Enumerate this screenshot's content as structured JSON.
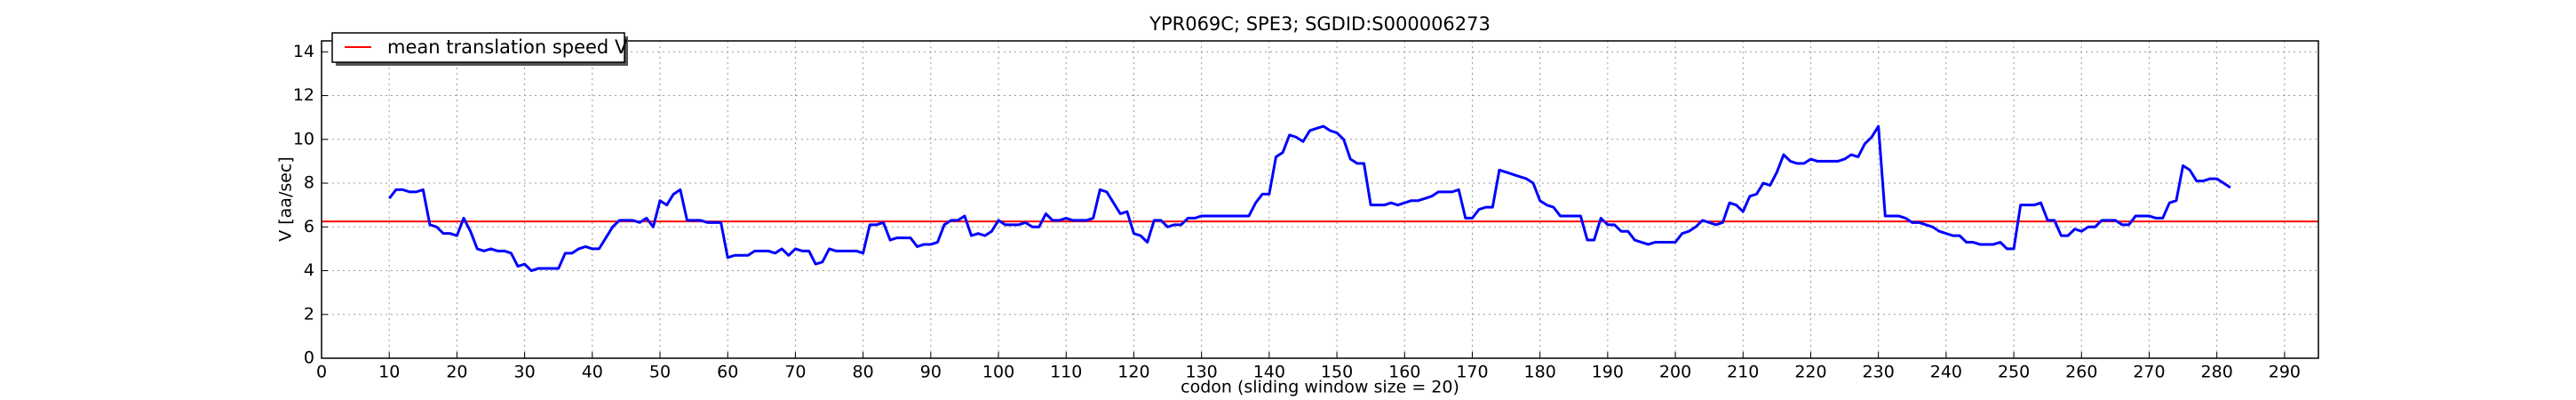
{
  "chart_data": {
    "type": "line",
    "title": "YPR069C; SPE3; SGDID:S000006273",
    "xlabel": "codon  (sliding window size = 20)",
    "ylabel": "V [aa/sec]",
    "xlim": [
      0,
      295
    ],
    "ylim": [
      0,
      14.5
    ],
    "xticks": [
      0,
      10,
      20,
      30,
      40,
      50,
      60,
      70,
      80,
      90,
      100,
      110,
      120,
      130,
      140,
      150,
      160,
      170,
      180,
      190,
      200,
      210,
      220,
      230,
      240,
      250,
      260,
      270,
      280,
      290
    ],
    "yticks": [
      0,
      2,
      4,
      6,
      8,
      10,
      12,
      14
    ],
    "grid": true,
    "legend": "upper left",
    "mean": {
      "name": "mean translation speed V",
      "value": 6.25,
      "color": "#ff0000"
    },
    "x": [
      10,
      11,
      12,
      13,
      14,
      15,
      16,
      17,
      18,
      19,
      20,
      21,
      22,
      23,
      24,
      25,
      26,
      27,
      28,
      29,
      30,
      31,
      32,
      33,
      34,
      35,
      36,
      37,
      38,
      39,
      40,
      41,
      42,
      43,
      44,
      45,
      46,
      47,
      48,
      49,
      50,
      51,
      52,
      53,
      54,
      55,
      56,
      57,
      58,
      59,
      60,
      61,
      62,
      63,
      64,
      65,
      66,
      67,
      68,
      69,
      70,
      71,
      72,
      73,
      74,
      75,
      76,
      77,
      78,
      79,
      80,
      81,
      82,
      83,
      84,
      85,
      86,
      87,
      88,
      89,
      90,
      91,
      92,
      93,
      94,
      95,
      96,
      97,
      98,
      99,
      100,
      101,
      102,
      103,
      104,
      105,
      106,
      107,
      108,
      109,
      110,
      111,
      112,
      113,
      114,
      115,
      116,
      117,
      118,
      119,
      120,
      121,
      122,
      123,
      124,
      125,
      126,
      127,
      128,
      129,
      130,
      131,
      132,
      133,
      134,
      135,
      136,
      137,
      138,
      139,
      140,
      141,
      142,
      143,
      144,
      145,
      146,
      147,
      148,
      149,
      150,
      151,
      152,
      153,
      154,
      155,
      156,
      157,
      158,
      159,
      160,
      161,
      162,
      163,
      164,
      165,
      166,
      167,
      168,
      169,
      170,
      171,
      172,
      173,
      174,
      175,
      176,
      177,
      178,
      179,
      180,
      181,
      182,
      183,
      184,
      185,
      186,
      187,
      188,
      189,
      190,
      191,
      192,
      193,
      194,
      195,
      196,
      197,
      198,
      199,
      200,
      201,
      202,
      203,
      204,
      205,
      206,
      207,
      208,
      209,
      210,
      211,
      212,
      213,
      214,
      215,
      216,
      217,
      218,
      219,
      220,
      221,
      222,
      223,
      224,
      225,
      226,
      227,
      228,
      229,
      230,
      231,
      232,
      233,
      234,
      235,
      236,
      237,
      238,
      239,
      240,
      241,
      242,
      243,
      244,
      245,
      246,
      247,
      248,
      249,
      250,
      251,
      252,
      253,
      254,
      255,
      256,
      257,
      258,
      259,
      260,
      261,
      262,
      263,
      264,
      265,
      266,
      267,
      268,
      269,
      270,
      271,
      272,
      273,
      274,
      275,
      276,
      277,
      278,
      279,
      280,
      281,
      282
    ],
    "series": [
      {
        "color": "#0000ff",
        "values": [
          7.3,
          7.7,
          7.7,
          7.6,
          7.6,
          7.7,
          6.1,
          6.0,
          5.7,
          5.7,
          5.6,
          6.4,
          5.8,
          5.0,
          4.9,
          5.0,
          4.9,
          4.9,
          4.8,
          4.2,
          4.3,
          4.0,
          4.1,
          4.1,
          4.1,
          4.1,
          4.8,
          4.8,
          5.0,
          5.1,
          5.0,
          5.0,
          5.5,
          6.0,
          6.3,
          6.3,
          6.3,
          6.2,
          6.4,
          6.0,
          7.2,
          7.0,
          7.5,
          7.7,
          6.3,
          6.3,
          6.3,
          6.2,
          6.2,
          6.2,
          4.6,
          4.7,
          4.7,
          4.7,
          4.9,
          4.9,
          4.9,
          4.8,
          5.0,
          4.7,
          5.0,
          4.9,
          4.9,
          4.3,
          4.4,
          5.0,
          4.9,
          4.9,
          4.9,
          4.9,
          4.8,
          6.1,
          6.1,
          6.2,
          5.4,
          5.5,
          5.5,
          5.5,
          5.1,
          5.2,
          5.2,
          5.3,
          6.1,
          6.3,
          6.3,
          6.5,
          5.6,
          5.7,
          5.6,
          5.8,
          6.3,
          6.1,
          6.1,
          6.1,
          6.2,
          6.0,
          6.0,
          6.6,
          6.3,
          6.3,
          6.4,
          6.3,
          6.3,
          6.3,
          6.4,
          7.7,
          7.6,
          7.1,
          6.6,
          6.7,
          5.7,
          5.6,
          5.3,
          6.3,
          6.3,
          6.0,
          6.1,
          6.1,
          6.4,
          6.4,
          6.5,
          6.5,
          6.5,
          6.5,
          6.5,
          6.5,
          6.5,
          6.5,
          7.1,
          7.5,
          7.5,
          9.2,
          9.4,
          10.2,
          10.1,
          9.9,
          10.4,
          10.5,
          10.6,
          10.4,
          10.3,
          10.0,
          9.1,
          8.9,
          8.9,
          7.0,
          7.0,
          7.0,
          7.1,
          7.0,
          7.1,
          7.2,
          7.2,
          7.3,
          7.4,
          7.6,
          7.6,
          7.6,
          7.7,
          6.4,
          6.4,
          6.8,
          6.9,
          6.9,
          8.6,
          8.5,
          8.4,
          8.3,
          8.2,
          8.0,
          7.2,
          7.0,
          6.9,
          6.5,
          6.5,
          6.5,
          6.5,
          5.4,
          5.4,
          6.4,
          6.1,
          6.1,
          5.8,
          5.8,
          5.4,
          5.3,
          5.2,
          5.3,
          5.3,
          5.3,
          5.3,
          5.7,
          5.8,
          6.0,
          6.3,
          6.2,
          6.1,
          6.2,
          7.1,
          7.0,
          6.7,
          7.4,
          7.5,
          8.0,
          7.9,
          8.5,
          9.3,
          9.0,
          8.9,
          8.9,
          9.1,
          9.0,
          9.0,
          9.0,
          9.0,
          9.1,
          9.3,
          9.2,
          9.8,
          10.1,
          10.6,
          6.5,
          6.5,
          6.5,
          6.4,
          6.2,
          6.2,
          6.1,
          6.0,
          5.8,
          5.7,
          5.6,
          5.6,
          5.3,
          5.3,
          5.2,
          5.2,
          5.2,
          5.3,
          5.0,
          5.0,
          7.0,
          7.0,
          7.0,
          7.1,
          6.3,
          6.3,
          5.6,
          5.6,
          5.9,
          5.8,
          6.0,
          6.0,
          6.3,
          6.3,
          6.3,
          6.1,
          6.1,
          6.5,
          6.5,
          6.5,
          6.4,
          6.4,
          7.1,
          7.2,
          8.8,
          8.6,
          8.1,
          8.1,
          8.2,
          8.2,
          8.0,
          7.8
        ]
      }
    ]
  }
}
